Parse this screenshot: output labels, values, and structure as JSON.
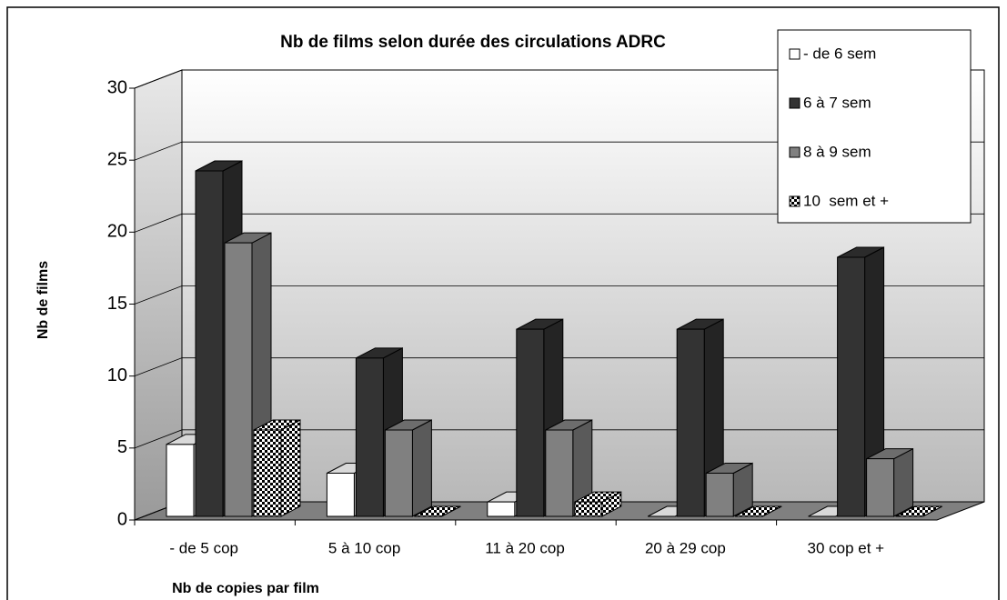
{
  "chart_data": {
    "type": "bar3d",
    "title": "Nb de films selon durée des circulations ADRC",
    "x_label": "Nb de copies par film",
    "y_label": "Nb de films",
    "categories": [
      "- de 5 cop",
      "5 à 10 cop",
      "11 à 20 cop",
      "20 à 29 cop",
      "30 cop et +"
    ],
    "series": [
      {
        "name": "- de 6 sem",
        "color": "#ffffff",
        "values": [
          5,
          3,
          1,
          0,
          0
        ]
      },
      {
        "name": "6 à 7 sem",
        "color": "#333333",
        "values": [
          24,
          11,
          13,
          13,
          18
        ]
      },
      {
        "name": "8 à 9 sem",
        "color": "#808080",
        "values": [
          19,
          6,
          6,
          3,
          4
        ]
      },
      {
        "name": "10  sem et +",
        "color": "#ffffff",
        "pattern": "checker",
        "values": [
          6,
          0,
          1,
          0,
          0
        ]
      }
    ],
    "ylim": [
      0,
      30
    ],
    "yticks": [
      0,
      5,
      10,
      15,
      20,
      25,
      30
    ],
    "grid": true,
    "legend": "top-right"
  }
}
